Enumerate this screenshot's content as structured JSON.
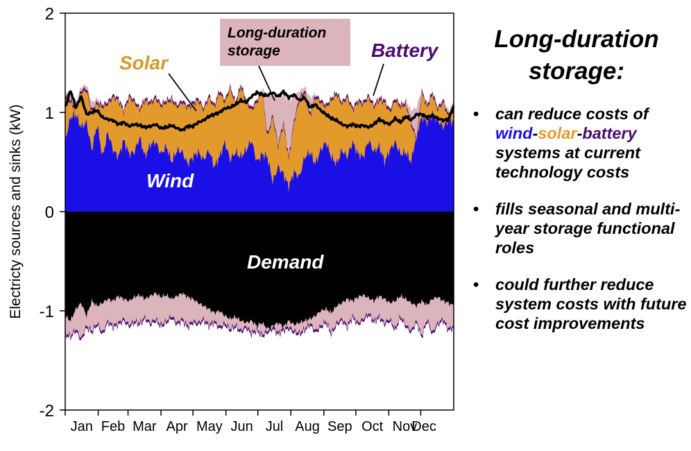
{
  "chart_data": {
    "type": "area",
    "title": "",
    "xlabel": "",
    "ylabel": "Electricty sources and sinks (kW)",
    "ylim": [
      -2,
      2
    ],
    "yticks": [
      2,
      1,
      0,
      -1,
      -2
    ],
    "xlim_days": [
      0,
      365
    ],
    "month_ticks_day": [
      0,
      31,
      59,
      90,
      120,
      151,
      181,
      212,
      243,
      273,
      304,
      334
    ],
    "month_labels": [
      "Jan",
      "Feb",
      "Mar",
      "Apr",
      "May",
      "Jun",
      "Jul",
      "Aug",
      "Sep",
      "Oct",
      "Nov",
      "Dec"
    ],
    "grid": false,
    "x_days": [
      0,
      5,
      10,
      15,
      20,
      25,
      30,
      35,
      40,
      45,
      50,
      55,
      60,
      65,
      70,
      75,
      80,
      85,
      90,
      95,
      100,
      105,
      110,
      115,
      120,
      125,
      130,
      135,
      140,
      145,
      150,
      155,
      160,
      165,
      170,
      175,
      180,
      185,
      190,
      195,
      200,
      205,
      210,
      215,
      220,
      225,
      230,
      235,
      240,
      245,
      250,
      255,
      260,
      265,
      270,
      275,
      280,
      285,
      290,
      295,
      300,
      305,
      310,
      315,
      320,
      325,
      330,
      335,
      340,
      345,
      350,
      355,
      360,
      365
    ],
    "series": [
      {
        "name": "Wind",
        "kind": "stacked-area-top",
        "color": "#1a10e6",
        "values": [
          0.72,
          0.95,
          0.98,
          0.85,
          0.9,
          0.62,
          0.88,
          0.55,
          0.8,
          0.62,
          0.55,
          0.72,
          0.58,
          0.6,
          0.75,
          0.55,
          0.68,
          0.7,
          0.58,
          0.66,
          0.5,
          0.62,
          0.6,
          0.48,
          0.55,
          0.6,
          0.52,
          0.62,
          0.45,
          0.55,
          0.7,
          0.52,
          0.6,
          0.55,
          0.62,
          0.72,
          0.5,
          0.58,
          0.55,
          0.3,
          0.45,
          0.38,
          0.25,
          0.4,
          0.35,
          0.55,
          0.6,
          0.48,
          0.62,
          0.7,
          0.55,
          0.48,
          0.62,
          0.55,
          0.7,
          0.58,
          0.55,
          0.72,
          0.6,
          0.66,
          0.5,
          0.62,
          0.7,
          0.58,
          0.6,
          0.5,
          0.78,
          0.95,
          0.9,
          0.98,
          0.92,
          0.85,
          0.92,
          0.9
        ]
      },
      {
        "name": "Solar",
        "kind": "stacked-area-top",
        "color": "#e39a2d",
        "values": [
          1.15,
          1.1,
          1.02,
          1.2,
          1.22,
          1.0,
          1.08,
          1.05,
          1.08,
          1.15,
          1.12,
          1.0,
          1.15,
          1.1,
          1.02,
          1.12,
          1.08,
          1.14,
          1.06,
          1.1,
          1.12,
          1.05,
          1.1,
          1.04,
          1.08,
          1.12,
          1.02,
          1.15,
          1.05,
          1.2,
          1.1,
          1.24,
          1.08,
          1.26,
          1.1,
          1.02,
          1.1,
          1.2,
          0.75,
          0.95,
          0.65,
          0.88,
          0.52,
          0.9,
          1.12,
          1.2,
          0.95,
          1.15,
          1.1,
          1.05,
          1.12,
          1.18,
          1.08,
          1.15,
          1.02,
          1.1,
          1.08,
          1.15,
          1.05,
          1.12,
          1.1,
          1.0,
          1.12,
          1.05,
          1.08,
          0.88,
          0.72,
          1.2,
          1.05,
          1.18,
          1.02,
          1.1,
          0.95,
          1.05
        ]
      },
      {
        "name": "Battery",
        "kind": "stacked-area-top",
        "color": "#4b0a6e",
        "values": [
          1.17,
          1.12,
          1.04,
          1.22,
          1.24,
          1.02,
          1.1,
          1.07,
          1.1,
          1.17,
          1.14,
          1.02,
          1.17,
          1.12,
          1.04,
          1.14,
          1.1,
          1.16,
          1.08,
          1.12,
          1.14,
          1.07,
          1.12,
          1.06,
          1.1,
          1.14,
          1.04,
          1.17,
          1.07,
          1.22,
          1.12,
          1.26,
          1.1,
          1.28,
          1.12,
          1.04,
          1.12,
          1.22,
          0.77,
          0.97,
          0.67,
          0.9,
          0.54,
          0.92,
          1.14,
          1.22,
          0.97,
          1.17,
          1.12,
          1.07,
          1.14,
          1.2,
          1.1,
          1.17,
          1.04,
          1.12,
          1.1,
          1.17,
          1.07,
          1.14,
          1.12,
          1.02,
          1.14,
          1.07,
          1.1,
          0.9,
          0.74,
          1.22,
          1.07,
          1.2,
          1.04,
          1.12,
          0.97,
          1.07
        ]
      },
      {
        "name": "Long-duration storage",
        "kind": "stacked-area-top",
        "color": "#dcb4bc",
        "values": [
          1.2,
          1.16,
          1.1,
          1.26,
          1.28,
          1.1,
          1.14,
          1.09,
          1.12,
          1.18,
          1.15,
          1.04,
          1.18,
          1.13,
          1.05,
          1.15,
          1.11,
          1.17,
          1.09,
          1.13,
          1.15,
          1.08,
          1.13,
          1.07,
          1.11,
          1.15,
          1.05,
          1.18,
          1.08,
          1.23,
          1.13,
          1.27,
          1.11,
          1.29,
          1.14,
          1.06,
          1.14,
          1.24,
          1.18,
          1.17,
          1.15,
          1.18,
          1.12,
          1.16,
          1.22,
          1.26,
          1.15,
          1.19,
          1.13,
          1.08,
          1.15,
          1.21,
          1.11,
          1.18,
          1.06,
          1.13,
          1.11,
          1.18,
          1.08,
          1.16,
          1.14,
          1.04,
          1.15,
          1.09,
          1.12,
          1.02,
          1.05,
          1.23,
          1.08,
          1.22,
          1.06,
          1.14,
          1.02,
          1.1
        ]
      },
      {
        "name": "Demand",
        "kind": "area-bottom",
        "color": "#000000",
        "values": [
          -1.05,
          -1.1,
          -0.98,
          -0.92,
          -1.05,
          -0.9,
          -0.95,
          -0.92,
          -0.88,
          -0.9,
          -0.85,
          -0.88,
          -0.9,
          -0.86,
          -0.84,
          -0.88,
          -0.85,
          -0.82,
          -0.86,
          -0.84,
          -0.88,
          -0.85,
          -0.82,
          -0.86,
          -0.88,
          -0.92,
          -0.95,
          -0.98,
          -1.02,
          -1.0,
          -1.05,
          -1.08,
          -1.06,
          -1.1,
          -1.12,
          -1.1,
          -1.15,
          -1.12,
          -1.18,
          -1.15,
          -1.12,
          -1.16,
          -1.1,
          -1.14,
          -1.12,
          -1.1,
          -1.08,
          -1.05,
          -1.0,
          -0.98,
          -1.02,
          -0.95,
          -0.92,
          -0.88,
          -0.9,
          -0.86,
          -0.84,
          -0.87,
          -0.9,
          -0.85,
          -0.88,
          -0.92,
          -0.9,
          -0.85,
          -0.88,
          -0.92,
          -0.95,
          -0.9,
          -0.94,
          -0.88,
          -0.86,
          -0.9,
          -0.92,
          -0.95
        ]
      },
      {
        "name": "Long-duration storage charging",
        "kind": "area-bottom",
        "color": "#dcb4bc",
        "values": [
          -1.22,
          -1.25,
          -1.18,
          -1.28,
          -1.15,
          -1.2,
          -1.12,
          -1.22,
          -1.1,
          -1.15,
          -1.12,
          -1.08,
          -1.14,
          -1.1,
          -1.12,
          -1.06,
          -1.12,
          -1.08,
          -1.14,
          -1.1,
          -1.05,
          -1.12,
          -1.08,
          -1.15,
          -1.1,
          -1.12,
          -1.08,
          -1.14,
          -1.1,
          -1.16,
          -1.12,
          -1.18,
          -1.14,
          -1.2,
          -1.15,
          -1.22,
          -1.18,
          -1.24,
          -1.2,
          -1.16,
          -1.22,
          -1.18,
          -1.16,
          -1.2,
          -1.22,
          -1.18,
          -1.12,
          -1.2,
          -1.15,
          -1.1,
          -1.22,
          -1.12,
          -1.08,
          -1.15,
          -1.05,
          -1.12,
          -1.08,
          -1.02,
          -1.1,
          -1.05,
          -1.12,
          -1.08,
          -1.18,
          -1.05,
          -1.14,
          -1.2,
          -1.1,
          -1.25,
          -1.08,
          -1.22,
          -1.12,
          -1.08,
          -1.18,
          -1.15
        ]
      },
      {
        "name": "Battery charging",
        "kind": "area-bottom",
        "color": "#4b0a6e",
        "values": [
          -1.24,
          -1.27,
          -1.2,
          -1.3,
          -1.17,
          -1.22,
          -1.14,
          -1.24,
          -1.12,
          -1.17,
          -1.14,
          -1.1,
          -1.16,
          -1.12,
          -1.14,
          -1.08,
          -1.14,
          -1.1,
          -1.16,
          -1.12,
          -1.07,
          -1.14,
          -1.1,
          -1.17,
          -1.12,
          -1.14,
          -1.1,
          -1.16,
          -1.12,
          -1.18,
          -1.14,
          -1.2,
          -1.16,
          -1.22,
          -1.17,
          -1.24,
          -1.2,
          -1.26,
          -1.22,
          -1.18,
          -1.24,
          -1.2,
          -1.18,
          -1.22,
          -1.24,
          -1.2,
          -1.14,
          -1.22,
          -1.17,
          -1.12,
          -1.24,
          -1.14,
          -1.1,
          -1.17,
          -1.07,
          -1.14,
          -1.1,
          -1.04,
          -1.12,
          -1.07,
          -1.14,
          -1.1,
          -1.2,
          -1.07,
          -1.16,
          -1.22,
          -1.12,
          -1.27,
          -1.1,
          -1.24,
          -1.14,
          -1.1,
          -1.2,
          -1.17
        ]
      },
      {
        "name": "Storage level",
        "kind": "line",
        "color": "#000000",
        "values": [
          1.05,
          1.22,
          1.05,
          1.16,
          0.98,
          1.0,
          1.02,
          0.95,
          0.93,
          0.92,
          0.88,
          0.9,
          0.86,
          0.88,
          0.87,
          0.85,
          0.86,
          0.88,
          0.84,
          0.85,
          0.87,
          0.84,
          0.82,
          0.86,
          0.86,
          0.9,
          0.92,
          0.96,
          0.98,
          1.0,
          1.04,
          1.05,
          1.08,
          1.12,
          1.1,
          1.16,
          1.2,
          1.18,
          1.17,
          1.2,
          1.16,
          1.21,
          1.15,
          1.18,
          1.12,
          1.15,
          1.05,
          1.08,
          1.02,
          0.98,
          0.94,
          0.92,
          0.88,
          0.86,
          0.88,
          0.86,
          0.87,
          0.85,
          0.88,
          0.93,
          0.9,
          0.88,
          0.94,
          0.9,
          0.96,
          0.92,
          0.98,
          0.98,
          0.95,
          0.97,
          0.94,
          0.92,
          0.93,
          1.06
        ]
      }
    ],
    "annotations": [
      {
        "text": "Solar",
        "color": "#d49a2a",
        "points_to": "Solar"
      },
      {
        "text": "Long-duration\nstorage",
        "color": "#000000",
        "box_color": "#dcb4bc",
        "points_to": "Long-duration storage"
      },
      {
        "text": "Battery",
        "color": "#4b0a6e",
        "points_to": "Battery"
      },
      {
        "text": "Wind",
        "color": "#ffffff"
      },
      {
        "text": "Demand",
        "color": "#ffffff"
      }
    ]
  },
  "labels": {
    "solar": "Solar",
    "lds_line1": "Long-duration",
    "lds_line2": "storage",
    "battery": "Battery",
    "wind": "Wind",
    "demand": "Demand",
    "ylabel": "Electricty sources and sinks (kW)",
    "yticks": [
      "2",
      "1",
      "0",
      "-1",
      "-2"
    ]
  },
  "side": {
    "title_line1": "Long-duration",
    "title_line2": "storage:",
    "bullet": "•",
    "bullets": [
      {
        "pre": "can reduce costs of",
        "wind": "wind",
        "dash1": "-",
        "solar": "solar",
        "dash2": "-",
        "battery": "battery",
        "post": "systems at current technology costs"
      },
      {
        "text": "fills seasonal and multi-year storage functional roles"
      },
      {
        "text": "could further reduce system costs with future cost improvements"
      }
    ]
  }
}
